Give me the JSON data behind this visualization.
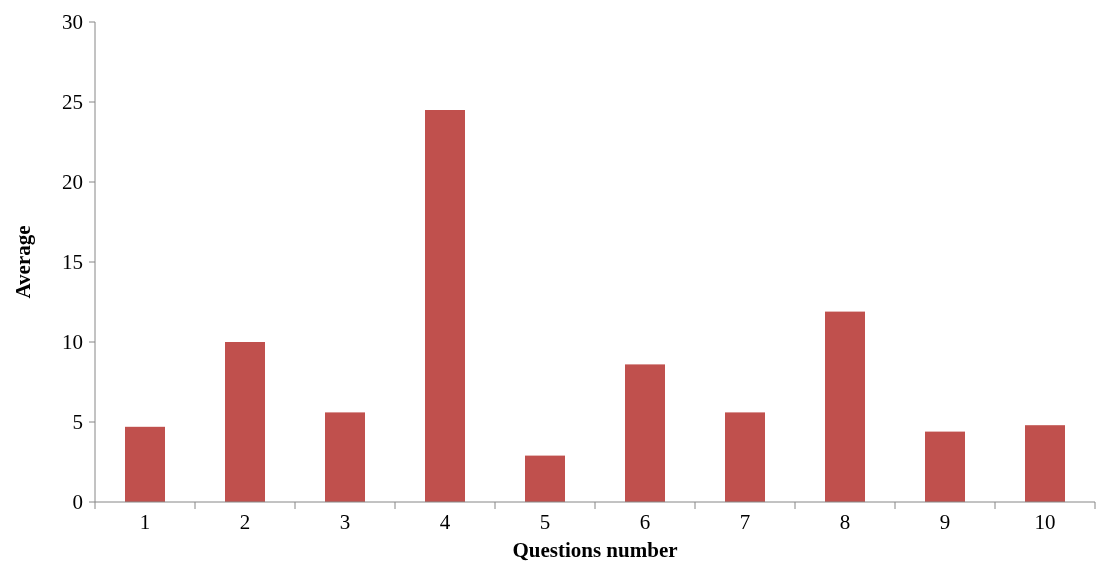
{
  "chart_data": {
    "type": "bar",
    "xlabel": "Questions number",
    "ylabel": "Average",
    "categories": [
      "1",
      "2",
      "3",
      "4",
      "5",
      "6",
      "7",
      "8",
      "9",
      "10"
    ],
    "values": [
      4.7,
      10.0,
      5.6,
      24.5,
      2.9,
      8.6,
      5.6,
      11.9,
      4.4,
      4.8
    ],
    "color": "#c0504d",
    "ylim": [
      0,
      30
    ],
    "yticks": [
      0,
      5,
      10,
      15,
      20,
      25,
      30
    ],
    "grid": false
  }
}
